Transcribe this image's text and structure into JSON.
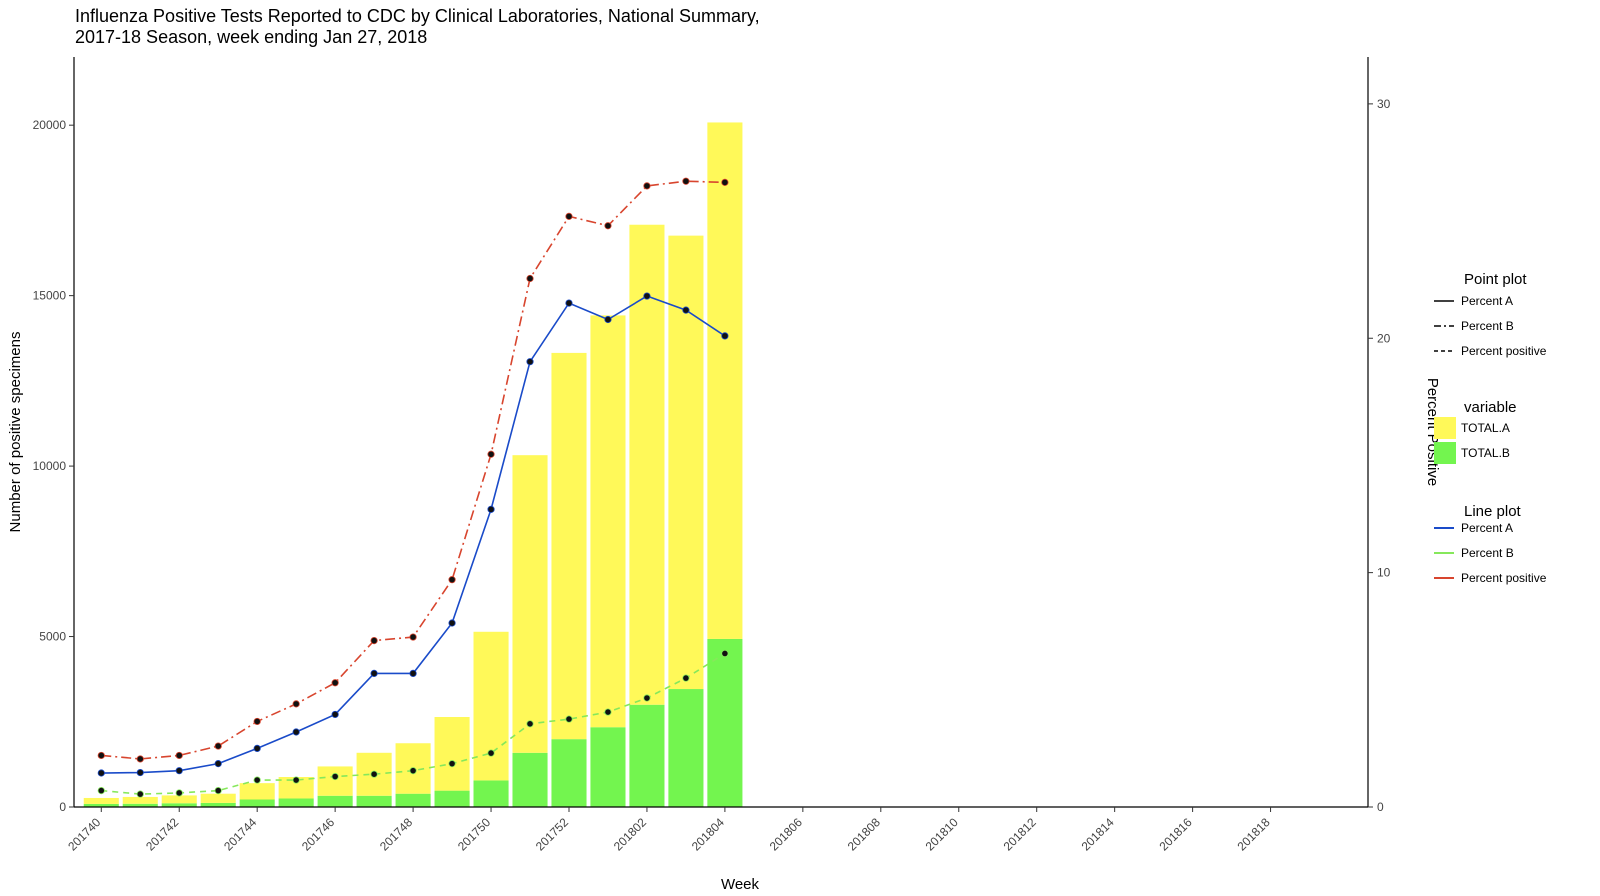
{
  "chart_data": {
    "type": "bar",
    "title_line1": "Influenza Positive Tests Reported to CDC by Clinical Laboratories, National Summary,",
    "title_line2": "2017-18 Season, week ending Jan 27, 2018",
    "xlabel": "Week",
    "ylabel": "Number of positive specimens",
    "y2label": "Percent Positive",
    "ylim": [
      0,
      22000
    ],
    "y2lim": [
      0,
      32
    ],
    "yticks": [
      0,
      5000,
      10000,
      15000,
      20000
    ],
    "y2ticks": [
      0,
      10,
      20,
      30
    ],
    "weeks": [
      "201740",
      "201741",
      "201742",
      "201743",
      "201744",
      "201745",
      "201746",
      "201747",
      "201748",
      "201749",
      "201750",
      "201751",
      "201752",
      "201801",
      "201802",
      "201803",
      "201804",
      "201805",
      "201806",
      "201807",
      "201808",
      "201809",
      "201810",
      "201811",
      "201812",
      "201813",
      "201814",
      "201815",
      "201816",
      "201817",
      "201818",
      "201819",
      "201820"
    ],
    "xtick_labels": [
      "201740",
      "201742",
      "201744",
      "201746",
      "201748",
      "201750",
      "201752",
      "201802",
      "201804",
      "201806",
      "201808",
      "201810",
      "201812",
      "201814",
      "201816",
      "201818"
    ],
    "bar_series": [
      {
        "name": "TOTAL.A",
        "color": "#fff959",
        "values": [
          175,
          200,
          230,
          270,
          480,
          630,
          860,
          1260,
          1480,
          2160,
          4360,
          8730,
          11330,
          12080,
          14080,
          13300,
          15150
        ]
      },
      {
        "name": "TOTAL.B",
        "color": "#73f54f",
        "values": [
          90,
          95,
          110,
          120,
          220,
          250,
          330,
          330,
          390,
          480,
          780,
          1590,
          1990,
          2340,
          3000,
          3460,
          4930
        ]
      }
    ],
    "line_series": [
      {
        "name": "Percent A",
        "color": "#1a4bc9",
        "dash": "",
        "values": [
          1.45,
          1.47,
          1.55,
          1.85,
          2.5,
          3.2,
          3.95,
          5.7,
          5.7,
          7.85,
          12.7,
          19.0,
          21.5,
          20.8,
          21.8,
          21.2,
          20.1
        ]
      },
      {
        "name": "Percent B",
        "color": "#86e85b",
        "dash": "6,5",
        "values": [
          0.7,
          0.55,
          0.6,
          0.7,
          1.15,
          1.15,
          1.3,
          1.4,
          1.55,
          1.85,
          2.3,
          3.55,
          3.75,
          4.05,
          4.65,
          5.5,
          6.55
        ]
      },
      {
        "name": "Percent positive",
        "color": "#d8452e",
        "dash": "10,4,2,4",
        "values": [
          2.2,
          2.05,
          2.2,
          2.6,
          3.65,
          4.4,
          5.3,
          7.1,
          7.25,
          9.7,
          15.05,
          22.55,
          25.2,
          24.8,
          26.5,
          26.7,
          26.65
        ]
      }
    ],
    "legend": {
      "point_title": "Point plot",
      "point_items": [
        {
          "label": "Percent A",
          "dash": ""
        },
        {
          "label": "Percent B",
          "dash": "7,3,2,3"
        },
        {
          "label": "Percent positive",
          "dash": "4,3"
        }
      ],
      "bar_title": "variable",
      "bar_items": [
        {
          "label": "TOTAL.A",
          "color": "#fff959"
        },
        {
          "label": "TOTAL.B",
          "color": "#73f54f"
        }
      ],
      "line_title": "Line plot",
      "line_items": [
        {
          "label": "Percent A",
          "color": "#1a4bc9"
        },
        {
          "label": "Percent B",
          "color": "#86e85b"
        },
        {
          "label": "Percent positive",
          "color": "#d8452e"
        }
      ]
    },
    "grid": false,
    "legend_position": "right"
  }
}
